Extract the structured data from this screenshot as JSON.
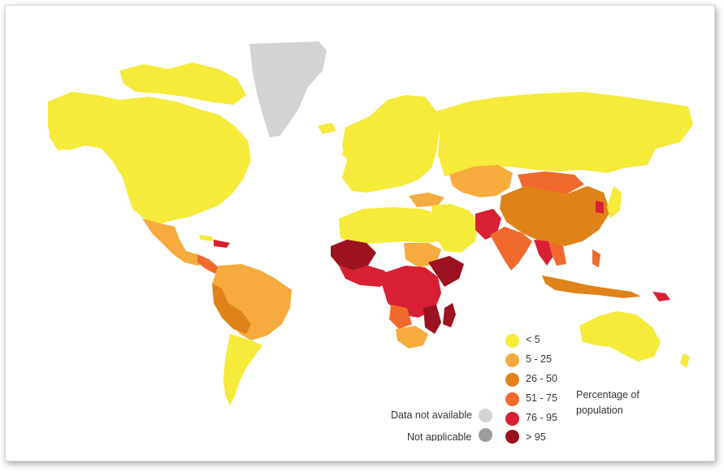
{
  "legend": {
    "title_line1": "Percentage of",
    "title_line2": "population",
    "items": [
      {
        "label": "< 5",
        "color": "#f6ea3a"
      },
      {
        "label": "5 - 25",
        "color": "#f7ab3f"
      },
      {
        "label": "26 - 50",
        "color": "#e0821a"
      },
      {
        "label": "51 - 75",
        "color": "#ef6a2c"
      },
      {
        "label": "76 - 95",
        "color": "#d81f33"
      },
      {
        "label": "> 95",
        "color": "#9c1220"
      }
    ],
    "not_available": {
      "label": "Data not available",
      "color": "#d3d3d3"
    },
    "not_applicable": {
      "label": "Not applicable",
      "color": "#9e9e9e"
    }
  }
}
